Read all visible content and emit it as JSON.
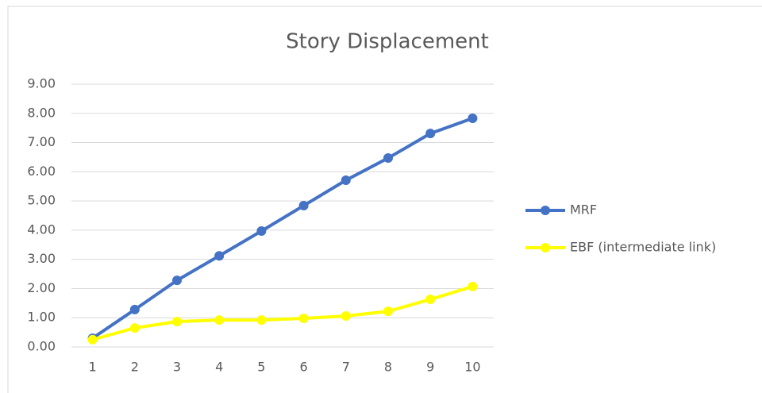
{
  "chart_data": {
    "type": "line",
    "title": "Story Displacement",
    "categories": [
      "1",
      "2",
      "3",
      "4",
      "5",
      "6",
      "7",
      "8",
      "9",
      "10"
    ],
    "series": [
      {
        "name": "MRF",
        "color": "#4472c4",
        "values": [
          0.3,
          1.28,
          2.28,
          3.12,
          3.97,
          4.84,
          5.71,
          6.47,
          7.31,
          7.83
        ]
      },
      {
        "name": "EBF (intermediate link)",
        "color": "#ffff00",
        "values": [
          0.25,
          0.65,
          0.87,
          0.92,
          0.92,
          0.98,
          1.06,
          1.22,
          1.63,
          2.07
        ]
      }
    ],
    "ylim": [
      0,
      9
    ],
    "yticks": [
      {
        "value": 0,
        "label": "0.00"
      },
      {
        "value": 1,
        "label": "1.00"
      },
      {
        "value": 2,
        "label": "2.00"
      },
      {
        "value": 3,
        "label": "3.00"
      },
      {
        "value": 4,
        "label": "4.00"
      },
      {
        "value": 5,
        "label": "5.00"
      },
      {
        "value": 6,
        "label": "6.00"
      },
      {
        "value": 7,
        "label": "7.00"
      },
      {
        "value": 8,
        "label": "8.00"
      },
      {
        "value": 9,
        "label": "9.00"
      }
    ],
    "grid": true,
    "legend": "right"
  }
}
